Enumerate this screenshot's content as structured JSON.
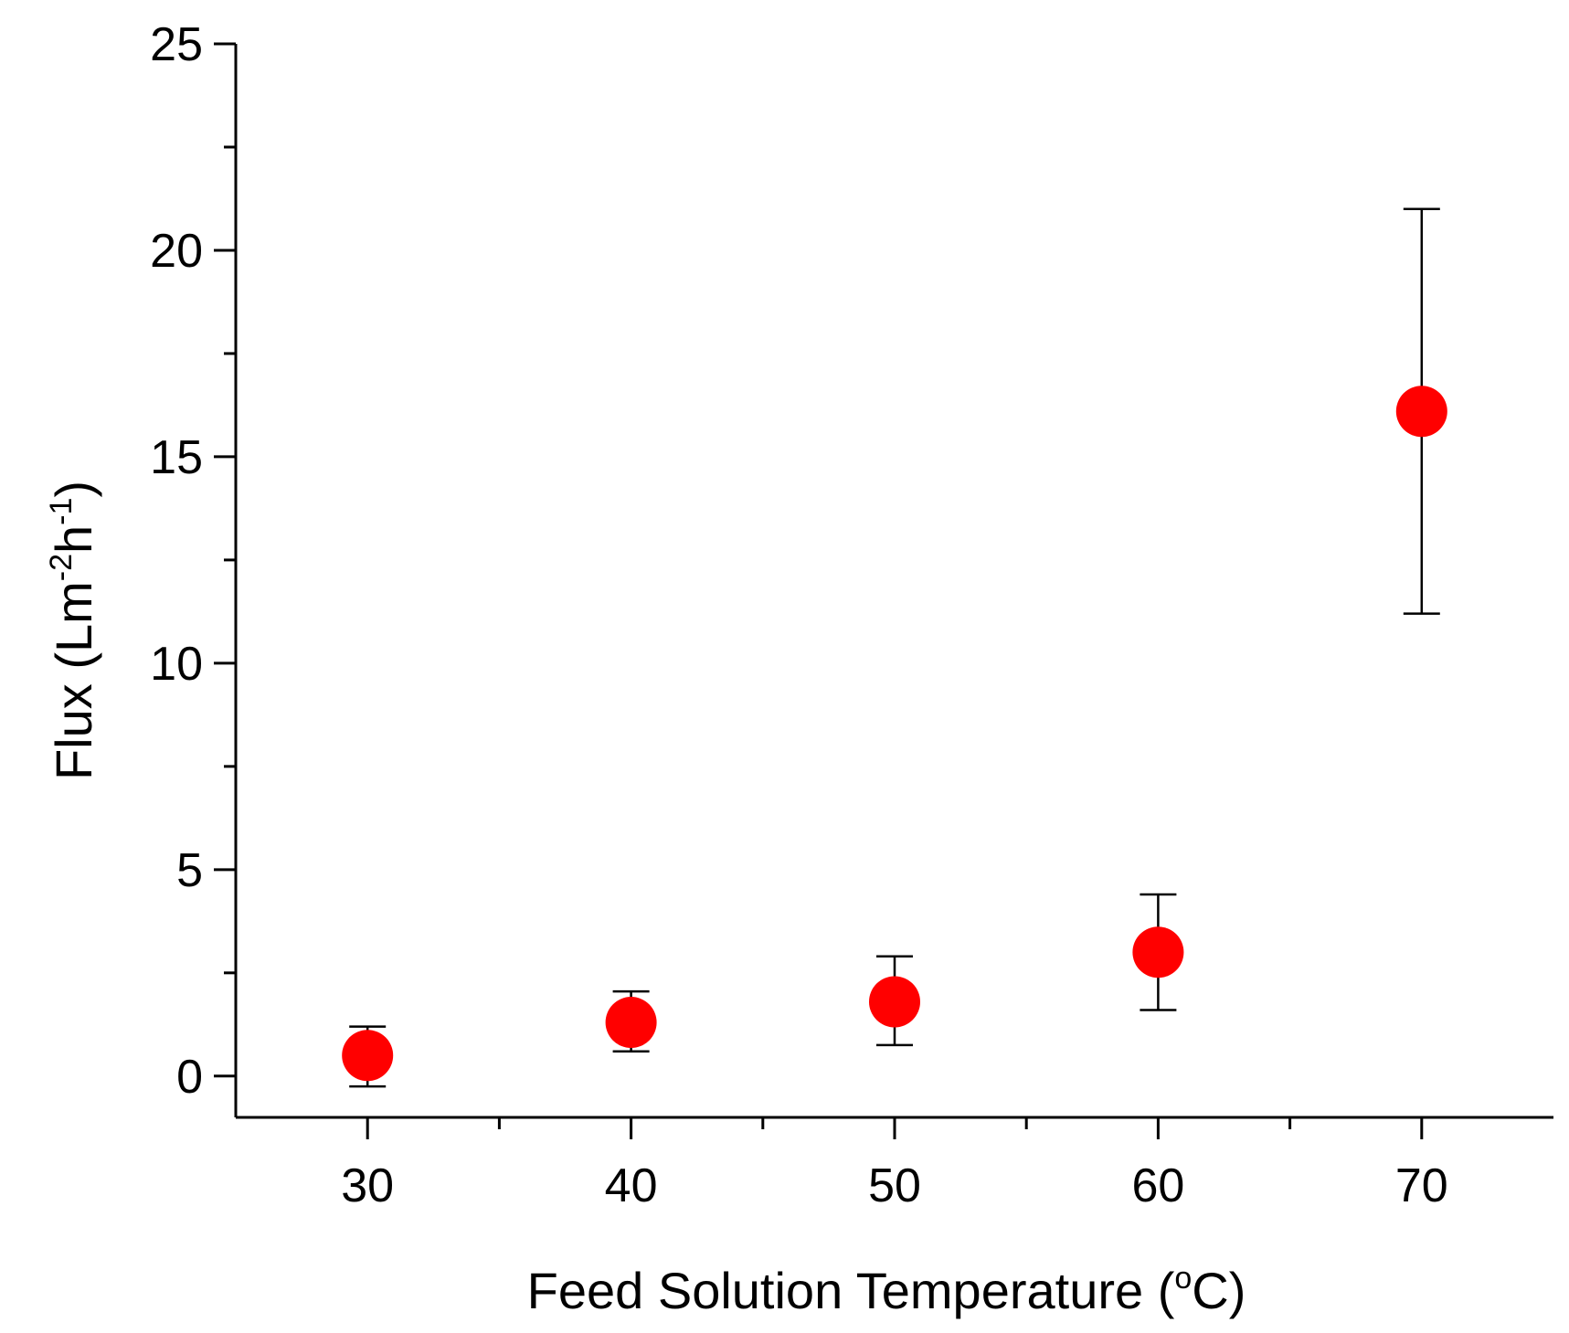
{
  "chart_data": {
    "type": "scatter",
    "title": "",
    "xlabel": {
      "prefix": "Feed Solution Temperature (",
      "superscript": "o",
      "suffix": "C)"
    },
    "ylabel": {
      "prefix": "Flux (Lm",
      "sup1": "-2",
      "mid": "h",
      "sup2": "-1",
      "suffix": ")"
    },
    "xlim": [
      25,
      75
    ],
    "ylim": [
      -1,
      25
    ],
    "xticks": [
      30,
      40,
      50,
      60,
      70
    ],
    "xminor": [
      35,
      45,
      55,
      65
    ],
    "yticks": [
      0,
      5,
      10,
      15,
      20,
      25
    ],
    "yminor": [
      2.5,
      7.5,
      12.5,
      17.5,
      22.5
    ],
    "series": [
      {
        "name": "Flux",
        "color": "#ff0000",
        "x": [
          30,
          40,
          50,
          60,
          70
        ],
        "y": [
          0.5,
          1.3,
          1.8,
          3.0,
          16.1
        ],
        "err_low": [
          -0.25,
          0.6,
          0.75,
          1.6,
          11.2
        ],
        "err_high": [
          1.2,
          2.05,
          2.9,
          4.4,
          21.0
        ]
      }
    ]
  }
}
